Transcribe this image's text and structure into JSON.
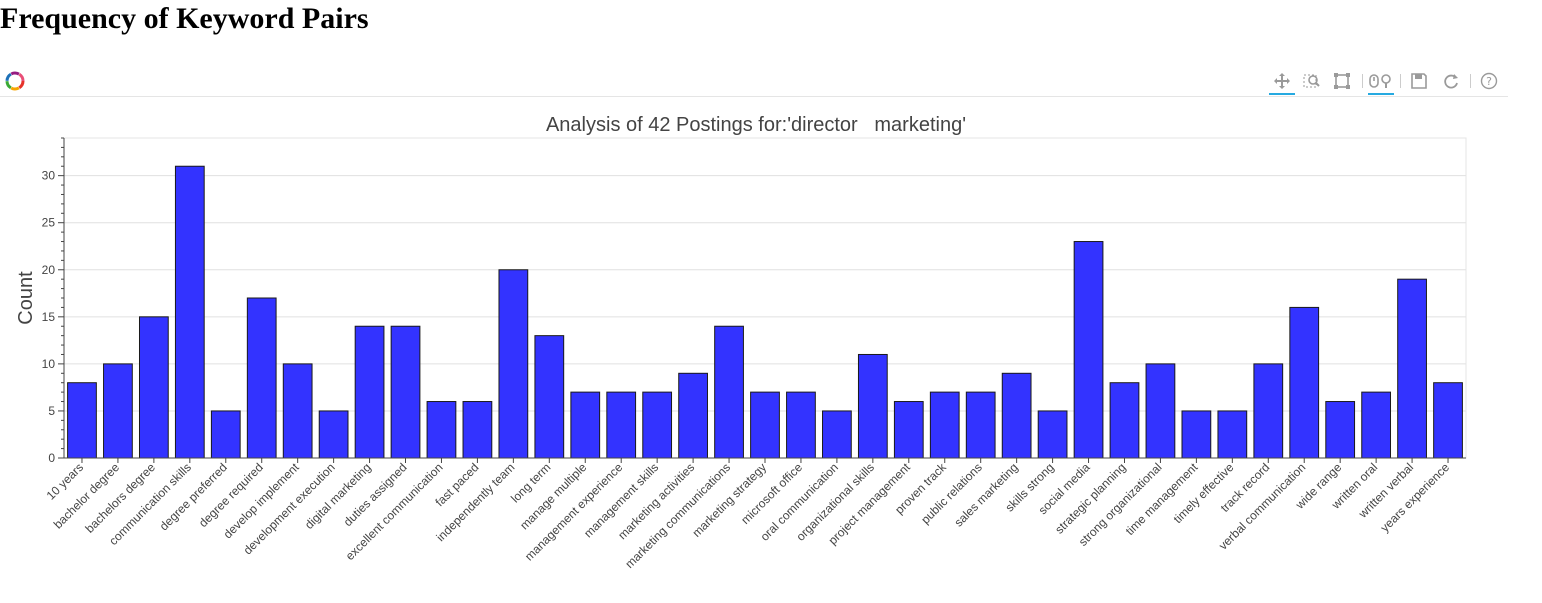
{
  "page": {
    "title": "Frequency of Keyword Pairs"
  },
  "toolbar": {
    "tools": [
      {
        "name": "pan-tool",
        "icon": "move-arrows-icon",
        "active": true
      },
      {
        "name": "box-zoom-tool",
        "icon": "box-zoom-icon",
        "active": false
      },
      {
        "name": "box-select-tool",
        "icon": "box-select-icon",
        "active": false
      },
      {
        "name": "wheel-zoom-tool",
        "icon": "wheel-zoom-icon",
        "active": true
      },
      {
        "name": "save-tool",
        "icon": "save-icon",
        "active": false
      },
      {
        "name": "reset-tool",
        "icon": "reset-icon",
        "active": false
      },
      {
        "name": "help-tool",
        "icon": "help-icon",
        "active": false
      }
    ]
  },
  "colors": {
    "bar_fill": "#3333ff",
    "bar_stroke": "#1a1a1a",
    "grid": "#e0e0e0",
    "axis": "#444444",
    "text": "#444444"
  },
  "chart_data": {
    "type": "bar",
    "title": "Analysis of 42 Postings for:'director   marketing'",
    "xlabel": "",
    "ylabel": "Count",
    "ylim": [
      0,
      34
    ],
    "yticks": [
      0,
      5,
      10,
      15,
      20,
      25,
      30
    ],
    "grid": "horizontal",
    "legend": "none",
    "categories": [
      "10 years",
      "bachelor degree",
      "bachelors degree",
      "communication skills",
      "degree preferred",
      "degree required",
      "develop implement",
      "development execution",
      "digital marketing",
      "duties assigned",
      "excellent communication",
      "fast paced",
      "independently team",
      "long term",
      "manage multiple",
      "management experience",
      "management skills",
      "marketing activities",
      "marketing communications",
      "marketing strategy",
      "microsoft office",
      "oral communication",
      "organizational skills",
      "project management",
      "proven track",
      "public relations",
      "sales marketing",
      "skills strong",
      "social media",
      "strategic planning",
      "strong organizational",
      "time management",
      "timely effective",
      "track record",
      "verbal communication",
      "wide range",
      "written oral",
      "written verbal",
      "years experience"
    ],
    "values": [
      8,
      10,
      15,
      31,
      5,
      17,
      10,
      5,
      14,
      14,
      6,
      6,
      20,
      13,
      7,
      7,
      7,
      9,
      14,
      7,
      7,
      5,
      11,
      6,
      7,
      7,
      9,
      5,
      23,
      8,
      10,
      5,
      5,
      10,
      16,
      6,
      7,
      19,
      8
    ]
  }
}
